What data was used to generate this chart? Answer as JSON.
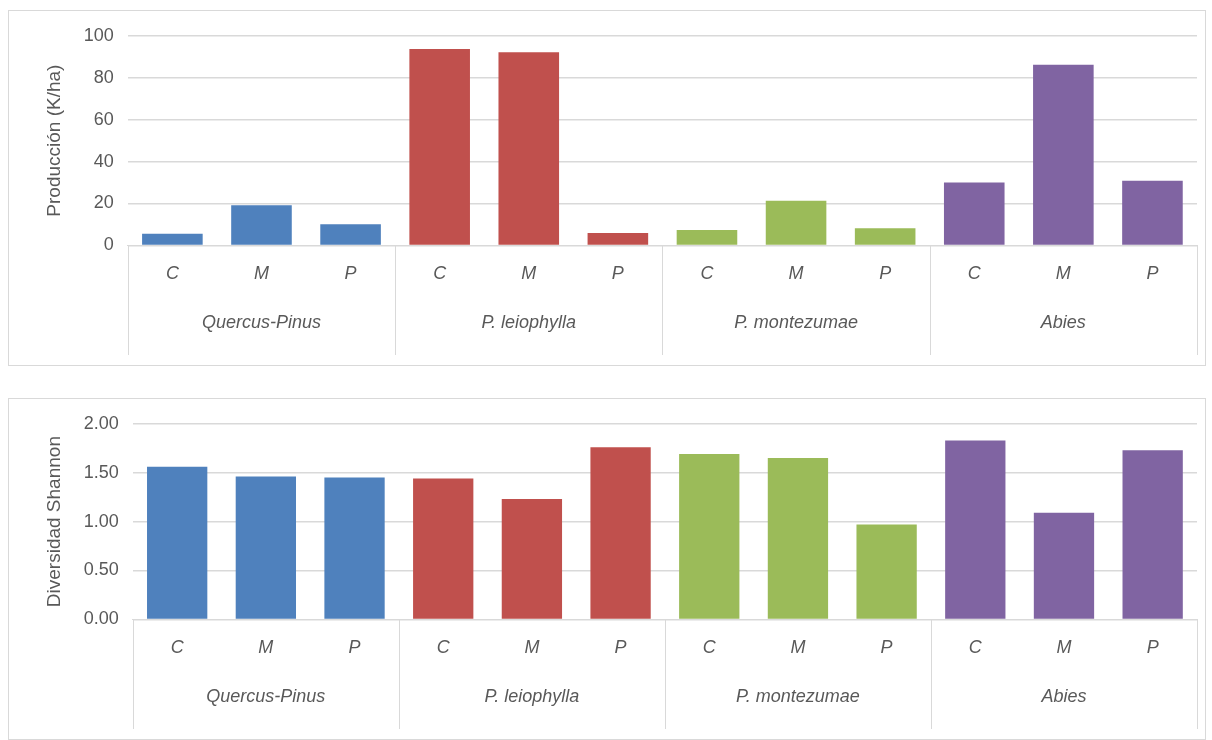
{
  "chart_data": [
    {
      "type": "bar",
      "ylabel": "Producción (K/ha)",
      "categories": [
        "C",
        "M",
        "P",
        "C",
        "M",
        "P",
        "C",
        "M",
        "P",
        "C",
        "M",
        "P"
      ],
      "series": [
        {
          "color": "#4f81bd",
          "values": [
            5.5,
            19.1,
            10.1,
            null,
            null,
            null,
            null,
            null,
            null,
            null,
            null,
            null
          ]
        },
        {
          "color": "#c0504d",
          "values": [
            null,
            null,
            null,
            93.7,
            92.2,
            5.9,
            null,
            null,
            null,
            null,
            null,
            null
          ]
        },
        {
          "color": "#9bbb59",
          "values": [
            null,
            null,
            null,
            null,
            null,
            null,
            7.3,
            21.3,
            8.2,
            null,
            null,
            null
          ]
        },
        {
          "color": "#8064a2",
          "values": [
            null,
            null,
            null,
            null,
            null,
            null,
            null,
            null,
            null,
            30.0,
            86.2,
            30.9
          ]
        }
      ],
      "annotations": [
        "Quercus-Pinus",
        "P. leiophylla",
        "P. montezumae",
        "Abies"
      ],
      "ylim": [
        0,
        100
      ],
      "yticks": [
        0,
        20,
        40,
        60,
        80,
        100
      ],
      "grid": "y"
    },
    {
      "type": "bar",
      "ylabel": "Diversidad Shannon",
      "categories": [
        "C",
        "M",
        "P",
        "C",
        "M",
        "P",
        "C",
        "M",
        "P",
        "C",
        "M",
        "P"
      ],
      "series": [
        {
          "color": "#4f81bd",
          "values": [
            1.56,
            1.46,
            1.45,
            null,
            null,
            null,
            null,
            null,
            null,
            null,
            null,
            null
          ]
        },
        {
          "color": "#c0504d",
          "values": [
            null,
            null,
            null,
            1.44,
            1.23,
            1.76,
            null,
            null,
            null,
            null,
            null,
            null
          ]
        },
        {
          "color": "#9bbb59",
          "values": [
            null,
            null,
            null,
            null,
            null,
            null,
            1.69,
            1.65,
            0.97,
            null,
            null,
            null
          ]
        },
        {
          "color": "#8064a2",
          "values": [
            null,
            null,
            null,
            null,
            null,
            null,
            null,
            null,
            null,
            1.83,
            1.09,
            1.73
          ]
        }
      ],
      "annotations": [
        "Quercus-Pinus",
        "P. leiophylla",
        "P. montezumae",
        "Abies"
      ],
      "ylim": [
        0,
        2
      ],
      "yticks": [
        {
          "value": 0,
          "label": "0.00"
        },
        {
          "value": 0.5,
          "label": "0.50"
        },
        {
          "value": 1,
          "label": "1.00"
        },
        {
          "value": 1.5,
          "label": "1.50"
        },
        {
          "value": 2,
          "label": "2.00"
        }
      ],
      "grid": "y"
    }
  ]
}
